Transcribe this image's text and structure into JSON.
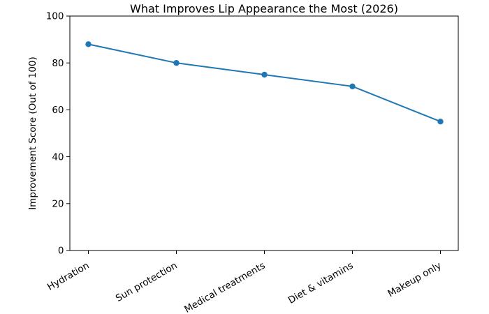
{
  "chart_data": {
    "type": "line",
    "title": "What Improves Lip Appearance the Most (2026)",
    "categories": [
      "Hydration",
      "Sun protection",
      "Medical treatments",
      "Diet & vitamins",
      "Makeup only"
    ],
    "values": [
      88,
      80,
      75,
      70,
      55
    ],
    "series": [
      {
        "name": "Improvement Score",
        "values": [
          88,
          80,
          75,
          70,
          55
        ]
      }
    ],
    "xlabel": "",
    "ylabel": "Improvement Score (Out of 100)",
    "ylim": [
      0,
      100
    ],
    "yticks": [
      0,
      20,
      40,
      60,
      80,
      100
    ],
    "x_tick_rotation_deg": 30,
    "grid": false,
    "legend": null,
    "line_color": "#1f77b4",
    "marker": "circle",
    "axis_color": "#000000",
    "background_color": "#ffffff"
  }
}
